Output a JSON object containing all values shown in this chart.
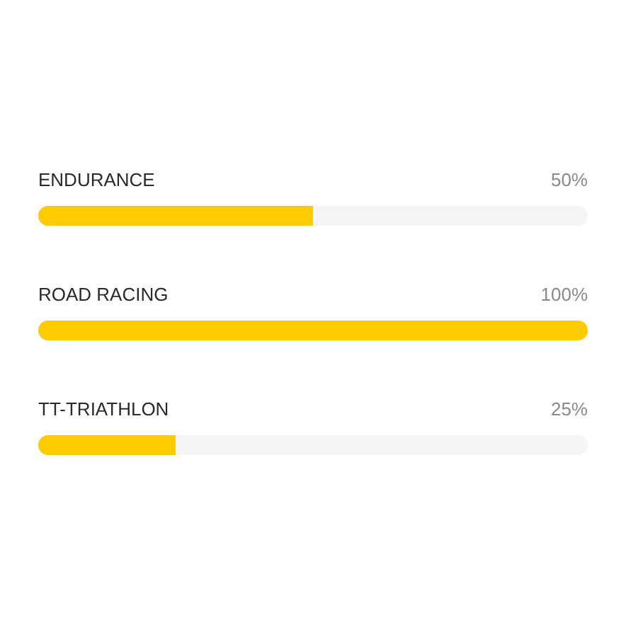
{
  "chart_data": {
    "type": "bar",
    "orientation": "horizontal",
    "categories": [
      "ENDURANCE",
      "ROAD RACING",
      "TT-TRIATHLON"
    ],
    "values": [
      50,
      100,
      25
    ],
    "color": "#fecb00",
    "value_labels": [
      "50%",
      "100%",
      "25%"
    ],
    "xlim": [
      0,
      100
    ],
    "tick_labels": "y",
    "grid": false
  }
}
